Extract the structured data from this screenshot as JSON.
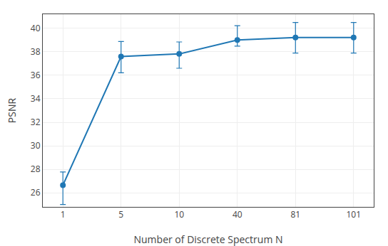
{
  "chart_data": {
    "type": "line",
    "xlabel": "Number of Discrete Spectrum N",
    "ylabel": "PSNR",
    "categories": [
      "1",
      "5",
      "10",
      "40",
      "81",
      "101"
    ],
    "values": [
      26.65,
      37.6,
      37.82,
      39.0,
      39.22,
      39.22
    ],
    "yerr_low": [
      1.65,
      1.38,
      1.22,
      0.52,
      1.32,
      1.32
    ],
    "yerr_high": [
      1.12,
      1.28,
      1.02,
      1.22,
      1.28,
      1.28
    ],
    "marker": "circle",
    "ylim": [
      24.8,
      41.2
    ],
    "yticks": [
      26,
      28,
      30,
      32,
      34,
      36,
      38,
      40
    ],
    "grid": true
  }
}
